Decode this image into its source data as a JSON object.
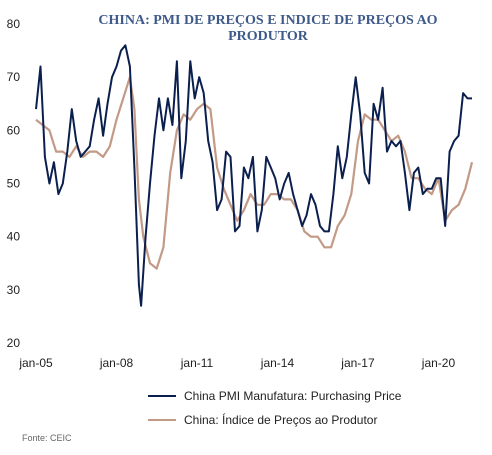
{
  "chart_data": {
    "type": "line",
    "title": "CHINA: PMI DE PREÇOS E INDICE DE PREÇOS AO PRODUTOR",
    "title_lines": [
      "CHINA: PMI DE PREÇOS E INDICE DE PREÇOS AO",
      "PRODUTOR"
    ],
    "xlabel": "",
    "ylabel": "",
    "ylim": [
      20,
      80
    ],
    "yticks": [
      20,
      30,
      40,
      50,
      60,
      70,
      80
    ],
    "xlim": [
      "2005-01",
      "2021-04"
    ],
    "xticks": [
      {
        "label": "jan-05",
        "date": "2005-01"
      },
      {
        "label": "jan-08",
        "date": "2008-01"
      },
      {
        "label": "jan-11",
        "date": "2011-01"
      },
      {
        "label": "jan-14",
        "date": "2014-01"
      },
      {
        "label": "jan-17",
        "date": "2017-01"
      },
      {
        "label": "jan-20",
        "date": "2020-01"
      }
    ],
    "grid": false,
    "legend_position": "bottom",
    "series": [
      {
        "name": "China PMI Manufatura: Purchasing Price",
        "color": "#0b1f4f",
        "points": [
          [
            "2005-01",
            64
          ],
          [
            "2005-03",
            72
          ],
          [
            "2005-05",
            55
          ],
          [
            "2005-07",
            50
          ],
          [
            "2005-09",
            54
          ],
          [
            "2005-11",
            48
          ],
          [
            "2006-01",
            50
          ],
          [
            "2006-03",
            56
          ],
          [
            "2006-05",
            64
          ],
          [
            "2006-07",
            58
          ],
          [
            "2006-09",
            55
          ],
          [
            "2006-11",
            56
          ],
          [
            "2007-01",
            57
          ],
          [
            "2007-03",
            62
          ],
          [
            "2007-05",
            66
          ],
          [
            "2007-07",
            59
          ],
          [
            "2007-09",
            65
          ],
          [
            "2007-11",
            70
          ],
          [
            "2008-01",
            72
          ],
          [
            "2008-03",
            75
          ],
          [
            "2008-05",
            76
          ],
          [
            "2008-07",
            72
          ],
          [
            "2008-09",
            53
          ],
          [
            "2008-11",
            31
          ],
          [
            "2008-12",
            27
          ],
          [
            "2009-02",
            40
          ],
          [
            "2009-04",
            50
          ],
          [
            "2009-06",
            59
          ],
          [
            "2009-08",
            66
          ],
          [
            "2009-10",
            60
          ],
          [
            "2009-12",
            66
          ],
          [
            "2010-02",
            61
          ],
          [
            "2010-04",
            73
          ],
          [
            "2010-06",
            51
          ],
          [
            "2010-08",
            58
          ],
          [
            "2010-10",
            73
          ],
          [
            "2010-12",
            66
          ],
          [
            "2011-02",
            70
          ],
          [
            "2011-04",
            67
          ],
          [
            "2011-06",
            58
          ],
          [
            "2011-08",
            54
          ],
          [
            "2011-10",
            45
          ],
          [
            "2011-12",
            47
          ],
          [
            "2012-02",
            56
          ],
          [
            "2012-04",
            55
          ],
          [
            "2012-06",
            41
          ],
          [
            "2012-08",
            42
          ],
          [
            "2012-10",
            53
          ],
          [
            "2012-12",
            51
          ],
          [
            "2013-02",
            55
          ],
          [
            "2013-04",
            41
          ],
          [
            "2013-06",
            45
          ],
          [
            "2013-08",
            55
          ],
          [
            "2013-10",
            53
          ],
          [
            "2013-12",
            51
          ],
          [
            "2014-02",
            47
          ],
          [
            "2014-04",
            50
          ],
          [
            "2014-06",
            52
          ],
          [
            "2014-08",
            48
          ],
          [
            "2014-10",
            45
          ],
          [
            "2014-12",
            42
          ],
          [
            "2015-02",
            44
          ],
          [
            "2015-04",
            48
          ],
          [
            "2015-06",
            46
          ],
          [
            "2015-08",
            42
          ],
          [
            "2015-10",
            41
          ],
          [
            "2015-12",
            41
          ],
          [
            "2016-02",
            48
          ],
          [
            "2016-04",
            57
          ],
          [
            "2016-06",
            51
          ],
          [
            "2016-08",
            55
          ],
          [
            "2016-10",
            63
          ],
          [
            "2016-12",
            70
          ],
          [
            "2017-02",
            63
          ],
          [
            "2017-04",
            52
          ],
          [
            "2017-06",
            50
          ],
          [
            "2017-08",
            65
          ],
          [
            "2017-10",
            62
          ],
          [
            "2017-12",
            68
          ],
          [
            "2018-02",
            56
          ],
          [
            "2018-04",
            58
          ],
          [
            "2018-06",
            57
          ],
          [
            "2018-08",
            58
          ],
          [
            "2018-10",
            52
          ],
          [
            "2018-12",
            45
          ],
          [
            "2019-02",
            52
          ],
          [
            "2019-04",
            53
          ],
          [
            "2019-06",
            48
          ],
          [
            "2019-08",
            49
          ],
          [
            "2019-10",
            49
          ],
          [
            "2019-12",
            51
          ],
          [
            "2020-02",
            51
          ],
          [
            "2020-04",
            42
          ],
          [
            "2020-06",
            56
          ],
          [
            "2020-08",
            58
          ],
          [
            "2020-10",
            59
          ],
          [
            "2020-12",
            67
          ],
          [
            "2021-02",
            66
          ],
          [
            "2021-04",
            66
          ]
        ]
      },
      {
        "name": "China: Índice de Preços ao Produtor",
        "color": "#c29a86",
        "points": [
          [
            "2005-01",
            62
          ],
          [
            "2005-04",
            61
          ],
          [
            "2005-07",
            60
          ],
          [
            "2005-10",
            56
          ],
          [
            "2006-01",
            56
          ],
          [
            "2006-04",
            55
          ],
          [
            "2006-07",
            57
          ],
          [
            "2006-10",
            55
          ],
          [
            "2007-01",
            56
          ],
          [
            "2007-04",
            56
          ],
          [
            "2007-07",
            55
          ],
          [
            "2007-10",
            57
          ],
          [
            "2008-01",
            62
          ],
          [
            "2008-04",
            66
          ],
          [
            "2008-07",
            70
          ],
          [
            "2008-09",
            64
          ],
          [
            "2008-11",
            47
          ],
          [
            "2009-01",
            40
          ],
          [
            "2009-04",
            35
          ],
          [
            "2009-07",
            34
          ],
          [
            "2009-10",
            38
          ],
          [
            "2010-01",
            52
          ],
          [
            "2010-04",
            60
          ],
          [
            "2010-07",
            63
          ],
          [
            "2010-10",
            62
          ],
          [
            "2011-01",
            64
          ],
          [
            "2011-04",
            65
          ],
          [
            "2011-07",
            64
          ],
          [
            "2011-10",
            53
          ],
          [
            "2012-01",
            49
          ],
          [
            "2012-04",
            46
          ],
          [
            "2012-07",
            43
          ],
          [
            "2012-10",
            45
          ],
          [
            "2013-01",
            48
          ],
          [
            "2013-04",
            46
          ],
          [
            "2013-07",
            46
          ],
          [
            "2013-10",
            48
          ],
          [
            "2014-01",
            48
          ],
          [
            "2014-04",
            47
          ],
          [
            "2014-07",
            47
          ],
          [
            "2014-10",
            45
          ],
          [
            "2015-01",
            41
          ],
          [
            "2015-04",
            40
          ],
          [
            "2015-07",
            40
          ],
          [
            "2015-10",
            38
          ],
          [
            "2016-01",
            38
          ],
          [
            "2016-04",
            42
          ],
          [
            "2016-07",
            44
          ],
          [
            "2016-10",
            48
          ],
          [
            "2017-01",
            58
          ],
          [
            "2017-04",
            63
          ],
          [
            "2017-07",
            62
          ],
          [
            "2017-10",
            62
          ],
          [
            "2018-01",
            60
          ],
          [
            "2018-04",
            58
          ],
          [
            "2018-07",
            59
          ],
          [
            "2018-10",
            56
          ],
          [
            "2019-01",
            51
          ],
          [
            "2019-04",
            51
          ],
          [
            "2019-07",
            49
          ],
          [
            "2019-10",
            48
          ],
          [
            "2020-01",
            51
          ],
          [
            "2020-04",
            43
          ],
          [
            "2020-07",
            45
          ],
          [
            "2020-10",
            46
          ],
          [
            "2021-01",
            49
          ],
          [
            "2021-04",
            54
          ]
        ]
      }
    ],
    "source": "Fonte: CEIC"
  }
}
